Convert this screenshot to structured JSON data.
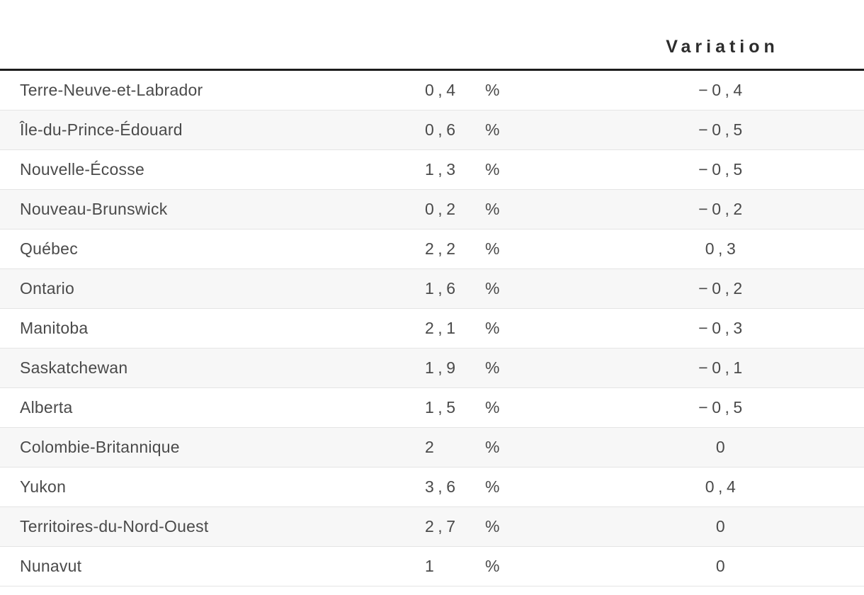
{
  "chart_data": {
    "type": "table",
    "title": "",
    "columns": [
      {
        "key": "region",
        "label": ""
      },
      {
        "key": "value",
        "label": ""
      },
      {
        "key": "unit",
        "label": ""
      },
      {
        "key": "variation",
        "label": "Variation"
      }
    ],
    "rows": [
      {
        "region": "Terre-Neuve-et-Labrador",
        "value": "0,4",
        "unit": "%",
        "variation": "−0,4"
      },
      {
        "region": "Île-du-Prince-Édouard",
        "value": "0,6",
        "unit": "%",
        "variation": "−0,5"
      },
      {
        "region": "Nouvelle-Écosse",
        "value": "1,3",
        "unit": "%",
        "variation": "−0,5"
      },
      {
        "region": "Nouveau-Brunswick",
        "value": "0,2",
        "unit": "%",
        "variation": "−0,2"
      },
      {
        "region": "Québec",
        "value": "2,2",
        "unit": "%",
        "variation": "0,3"
      },
      {
        "region": "Ontario",
        "value": "1,6",
        "unit": "%",
        "variation": "−0,2"
      },
      {
        "region": "Manitoba",
        "value": "2,1",
        "unit": "%",
        "variation": "−0,3"
      },
      {
        "region": "Saskatchewan",
        "value": "1,9",
        "unit": "%",
        "variation": "−0,1"
      },
      {
        "region": "Alberta",
        "value": "1,5",
        "unit": "%",
        "variation": "−0,5"
      },
      {
        "region": "Colombie-Britannique",
        "value": "2",
        "unit": "%",
        "variation": "0"
      },
      {
        "region": "Yukon",
        "value": "3,6",
        "unit": "%",
        "variation": "0,4"
      },
      {
        "region": "Territoires-du-Nord-Ouest",
        "value": "2,7",
        "unit": "%",
        "variation": "0"
      },
      {
        "region": "Nunavut",
        "value": "1",
        "unit": "%",
        "variation": "0"
      }
    ]
  },
  "colors": {
    "header_rule": "#1c1c1c",
    "row_stripe": "#f7f7f7",
    "row_border": "#e4e4e4",
    "text": "#4a4a4a",
    "header_text": "#2d2d2d"
  }
}
